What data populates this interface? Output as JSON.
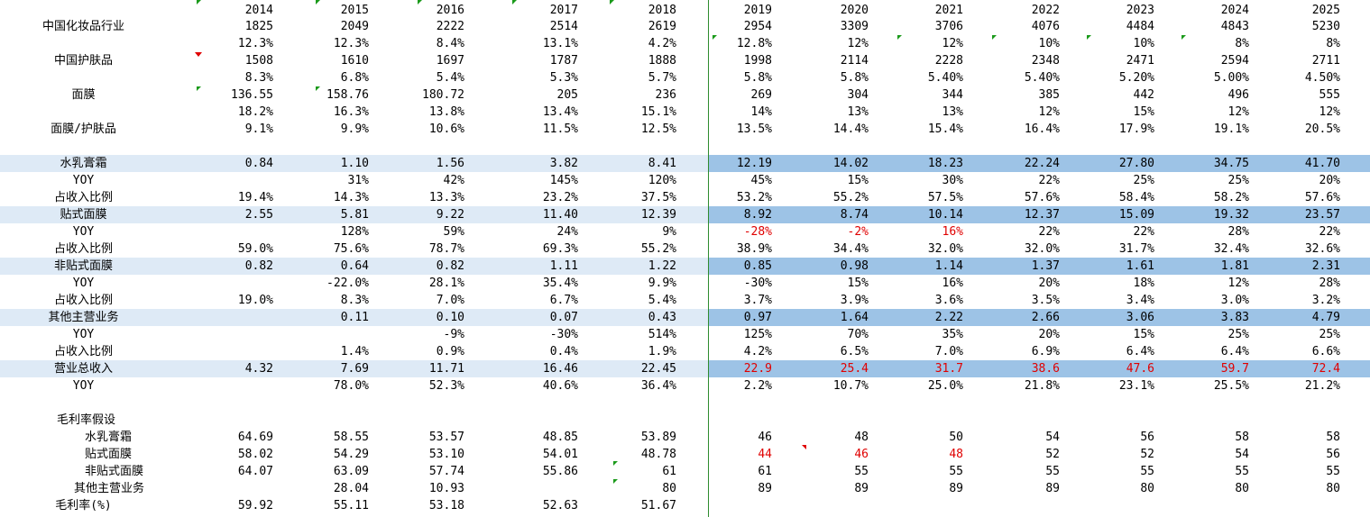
{
  "years": [
    "2014",
    "2015",
    "2016",
    "2017",
    "2018",
    "2019",
    "2020",
    "2021",
    "2022",
    "2023",
    "2024",
    "2025"
  ],
  "rows": [
    {
      "label": "中国化妆品行业",
      "values": [
        "1825",
        "2049",
        "2222",
        "2514",
        "2619",
        "2954",
        "3309",
        "3706",
        "4076",
        "4484",
        "4843",
        "5230"
      ]
    },
    {
      "label": "",
      "values": [
        "12.3%",
        "12.3%",
        "8.4%",
        "13.1%",
        "4.2%",
        "12.8%",
        "12%",
        "12%",
        "10%",
        "10%",
        "8%",
        "8%"
      ]
    },
    {
      "label": "中国护肤品",
      "values": [
        "1508",
        "1610",
        "1697",
        "1787",
        "1888",
        "1998",
        "2114",
        "2228",
        "2348",
        "2471",
        "2594",
        "2711"
      ]
    },
    {
      "label": "",
      "values": [
        "8.3%",
        "6.8%",
        "5.4%",
        "5.3%",
        "5.7%",
        "5.8%",
        "5.8%",
        "5.40%",
        "5.40%",
        "5.20%",
        "5.00%",
        "4.50%"
      ]
    },
    {
      "label": "面膜",
      "values": [
        "136.55",
        "158.76",
        "180.72",
        "205",
        "236",
        "269",
        "304",
        "344",
        "385",
        "442",
        "496",
        "555"
      ]
    },
    {
      "label": "",
      "values": [
        "18.2%",
        "16.3%",
        "13.8%",
        "13.4%",
        "15.1%",
        "14%",
        "13%",
        "13%",
        "12%",
        "15%",
        "12%",
        "12%"
      ]
    },
    {
      "label": "面膜/护肤品",
      "values": [
        "9.1%",
        "9.9%",
        "10.6%",
        "11.5%",
        "12.5%",
        "13.5%",
        "14.4%",
        "15.4%",
        "16.4%",
        "17.9%",
        "19.1%",
        "20.5%"
      ]
    },
    {
      "label": "",
      "values": [
        "",
        "",
        "",
        "",
        "",
        "",
        "",
        "",
        "",
        "",
        "",
        ""
      ]
    },
    {
      "label": "水乳膏霜",
      "band": true,
      "values": [
        "0.84",
        "1.10",
        "1.56",
        "3.82",
        "8.41",
        "12.19",
        "14.02",
        "18.23",
        "22.24",
        "27.80",
        "34.75",
        "41.70"
      ]
    },
    {
      "label": "YOY",
      "values": [
        "",
        "31%",
        "42%",
        "145%",
        "120%",
        "45%",
        "15%",
        "30%",
        "22%",
        "25%",
        "25%",
        "20%"
      ]
    },
    {
      "label": "占收入比例",
      "values": [
        "19.4%",
        "14.3%",
        "13.3%",
        "23.2%",
        "37.5%",
        "53.2%",
        "55.2%",
        "57.5%",
        "57.6%",
        "58.4%",
        "58.2%",
        "57.6%"
      ]
    },
    {
      "label": "贴式面膜",
      "band": true,
      "values": [
        "2.55",
        "5.81",
        "9.22",
        "11.40",
        "12.39",
        "8.92",
        "8.74",
        "10.14",
        "12.37",
        "15.09",
        "19.32",
        "23.57"
      ]
    },
    {
      "label": "YOY",
      "values": [
        "",
        "128%",
        "59%",
        "24%",
        "9%",
        "-28%",
        "-2%",
        "16%",
        "22%",
        "22%",
        "28%",
        "22%"
      ],
      "red": [
        5,
        6,
        7
      ]
    },
    {
      "label": "占收入比例",
      "values": [
        "59.0%",
        "75.6%",
        "78.7%",
        "69.3%",
        "55.2%",
        "38.9%",
        "34.4%",
        "32.0%",
        "32.0%",
        "31.7%",
        "32.4%",
        "32.6%"
      ]
    },
    {
      "label": "非贴式面膜",
      "band": true,
      "values": [
        "0.82",
        "0.64",
        "0.82",
        "1.11",
        "1.22",
        "0.85",
        "0.98",
        "1.14",
        "1.37",
        "1.61",
        "1.81",
        "2.31"
      ]
    },
    {
      "label": "YOY",
      "values": [
        "",
        "-22.0%",
        "28.1%",
        "35.4%",
        "9.9%",
        "-30%",
        "15%",
        "16%",
        "20%",
        "18%",
        "12%",
        "28%"
      ]
    },
    {
      "label": "占收入比例",
      "values": [
        "19.0%",
        "8.3%",
        "7.0%",
        "6.7%",
        "5.4%",
        "3.7%",
        "3.9%",
        "3.6%",
        "3.5%",
        "3.4%",
        "3.0%",
        "3.2%"
      ]
    },
    {
      "label": "其他主营业务",
      "band": true,
      "values": [
        "",
        "0.11",
        "0.10",
        "0.07",
        "0.43",
        "0.97",
        "1.64",
        "2.22",
        "2.66",
        "3.06",
        "3.83",
        "4.79"
      ]
    },
    {
      "label": "YOY",
      "values": [
        "",
        "",
        "-9%",
        "-30%",
        "514%",
        "125%",
        "70%",
        "35%",
        "20%",
        "15%",
        "25%",
        "25%"
      ]
    },
    {
      "label": "占收入比例",
      "values": [
        "",
        "1.4%",
        "0.9%",
        "0.4%",
        "1.9%",
        "4.2%",
        "6.5%",
        "7.0%",
        "6.9%",
        "6.4%",
        "6.4%",
        "6.6%"
      ]
    },
    {
      "label": "营业总收入",
      "band": true,
      "values": [
        "4.32",
        "7.69",
        "11.71",
        "16.46",
        "22.45",
        "22.9",
        "25.4",
        "31.7",
        "38.6",
        "47.6",
        "59.7",
        "72.4"
      ],
      "red": [
        5,
        6,
        7,
        8,
        9,
        10,
        11
      ]
    },
    {
      "label": "YOY",
      "values": [
        "",
        "78.0%",
        "52.3%",
        "40.6%",
        "36.4%",
        "2.2%",
        "10.7%",
        "25.0%",
        "21.8%",
        "23.1%",
        "25.5%",
        "21.2%"
      ]
    },
    {
      "label": "",
      "values": [
        "",
        "",
        "",
        "",
        "",
        "",
        "",
        "",
        "",
        "",
        "",
        ""
      ]
    },
    {
      "label": "毛利率假设",
      "indent": "ind1",
      "values": [
        "",
        "",
        "",
        "",
        "",
        "",
        "",
        "",
        "",
        "",
        "",
        ""
      ]
    },
    {
      "label": "水乳膏霜",
      "indent": "ind2",
      "values": [
        "64.69",
        "58.55",
        "53.57",
        "48.85",
        "53.89",
        "46",
        "48",
        "50",
        "54",
        "56",
        "58",
        "58"
      ]
    },
    {
      "label": "贴式面膜",
      "indent": "ind2",
      "values": [
        "58.02",
        "54.29",
        "53.10",
        "54.01",
        "48.78",
        "44",
        "46",
        "48",
        "52",
        "52",
        "54",
        "56"
      ],
      "red": [
        5,
        6,
        7
      ]
    },
    {
      "label": "非贴式面膜",
      "indent": "ind2",
      "values": [
        "64.07",
        "63.09",
        "57.74",
        "55.86",
        "61",
        "61",
        "55",
        "55",
        "55",
        "55",
        "55",
        "55"
      ]
    },
    {
      "label": "其他主营业务",
      "indent": "ind3",
      "values": [
        "",
        "28.04",
        "10.93",
        "",
        "80",
        "89",
        "89",
        "89",
        "89",
        "80",
        "80",
        "80"
      ]
    },
    {
      "label": "毛利率(%)",
      "values": [
        "59.92",
        "55.11",
        "53.18",
        "52.63",
        "51.67",
        "",
        "",
        "",
        "",
        "",
        "",
        ""
      ]
    }
  ]
}
